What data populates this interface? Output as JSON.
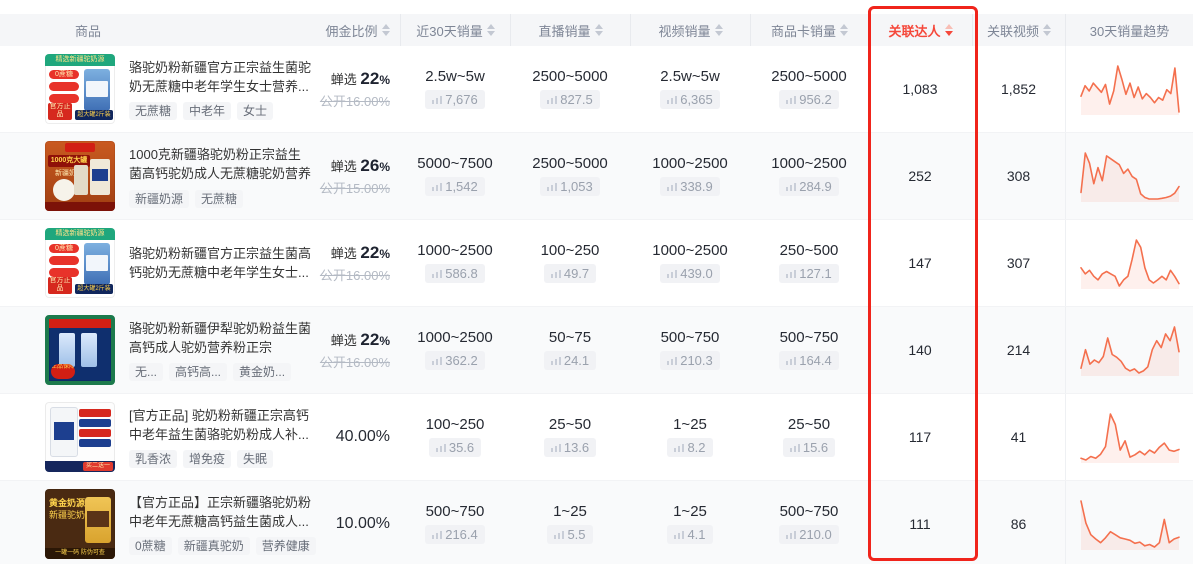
{
  "colors": {
    "accent_red": "#f5483b",
    "annotation_box_red": "#f0241b",
    "sparkline_orange": "#f4704e",
    "header_bg": "#f5f6f8",
    "alt_row_bg": "#f9fafb"
  },
  "header": {
    "columns": [
      {
        "label": "商品",
        "sortable": false
      },
      {
        "label": "佣金比例",
        "sortable": true
      },
      {
        "label": "近30天销量",
        "sortable": true
      },
      {
        "label": "直播销量",
        "sortable": true
      },
      {
        "label": "视频销量",
        "sortable": true
      },
      {
        "label": "商品卡销量",
        "sortable": true,
        "highlighted": true
      },
      {
        "label": "关联达人",
        "sortable": true,
        "highlighted": true
      },
      {
        "label": "关联视频",
        "sortable": true
      },
      {
        "label": "30天销量趋势",
        "sortable": false
      }
    ]
  },
  "rows": [
    {
      "title": "骆驼奶粉新疆官方正宗益生菌驼奶无蔗糖中老年学生女士营养...",
      "tags": [
        "无蔗糖",
        "中老年",
        "女士"
      ],
      "commission": {
        "chan_label": "蝉选",
        "chan_value": "22",
        "chan_unit": "%",
        "public_text": "公开16.00%"
      },
      "sales30": {
        "range": "2.5w~5w",
        "sub": "7,676"
      },
      "live": {
        "range": "2500~5000",
        "sub": "827.5"
      },
      "video": {
        "range": "2.5w~5w",
        "sub": "6,365"
      },
      "card": {
        "range": "2500~5000",
        "sub": "956.2"
      },
      "darren": "1,083",
      "videos": "1,852",
      "image": {
        "banner": "精选新疆驼奶源",
        "badge": "0蔗糖",
        "stamp": "官方正品",
        "footer": "超大罐2斤装"
      },
      "trend": [
        42,
        58,
        50,
        62,
        55,
        48,
        60,
        30,
        50,
        88,
        68,
        45,
        62,
        40,
        56,
        38,
        46,
        40,
        32,
        40,
        36,
        52,
        46,
        85,
        18
      ]
    },
    {
      "title": "1000克新疆骆驼奶粉正宗益生菌高钙驼奶成人无蔗糖驼奶营养粉",
      "tags": [
        "新疆奶源",
        "无蔗糖"
      ],
      "commission": {
        "chan_label": "蝉选",
        "chan_value": "26",
        "chan_unit": "%",
        "public_text": "公开15.00%"
      },
      "sales30": {
        "range": "5000~7500",
        "sub": "1,542"
      },
      "live": {
        "range": "2500~5000",
        "sub": "1,053"
      },
      "video": {
        "range": "1000~2500",
        "sub": "338.9"
      },
      "card": {
        "range": "1000~2500",
        "sub": "284.9"
      },
      "darren": "252",
      "videos": "308",
      "image": {
        "badge": "1000克大罐",
        "sub": "新疆奶源"
      },
      "trend": [
        18,
        72,
        58,
        30,
        52,
        34,
        68,
        64,
        60,
        56,
        44,
        50,
        40,
        36,
        16,
        11,
        9,
        9,
        9,
        10,
        11,
        13,
        17,
        26
      ]
    },
    {
      "title": "骆驼奶粉新疆官方正宗益生菌高钙驼奶无蔗糖中老年学生女士...",
      "tags": [],
      "commission": {
        "chan_label": "蝉选",
        "chan_value": "22",
        "chan_unit": "%",
        "public_text": "公开16.00%"
      },
      "sales30": {
        "range": "1000~2500",
        "sub": "586.8"
      },
      "live": {
        "range": "100~250",
        "sub": "49.7"
      },
      "video": {
        "range": "1000~2500",
        "sub": "439.0"
      },
      "card": {
        "range": "250~500",
        "sub": "127.1"
      },
      "darren": "147",
      "videos": "307",
      "image": {
        "banner": "精选新疆驼奶源",
        "badge": "0蔗糖",
        "stamp": "官方正品",
        "footer": "超大罐2斤装"
      },
      "trend": [
        44,
        34,
        40,
        30,
        24,
        34,
        38,
        34,
        30,
        14,
        24,
        30,
        58,
        90,
        78,
        44,
        24,
        19,
        24,
        30,
        24,
        40,
        30,
        18
      ]
    },
    {
      "title": "骆驼奶粉新疆伊犁驼奶粉益生菌高钙成人驼奶营养粉正宗",
      "tags": [
        "无...",
        "高钙高...",
        "黄金奶..."
      ],
      "commission": {
        "chan_label": "蝉选",
        "chan_value": "22",
        "chan_unit": "%",
        "public_text": "公开16.00%"
      },
      "sales30": {
        "range": "1000~2500",
        "sub": "362.2"
      },
      "live": {
        "range": "50~75",
        "sub": "24.1"
      },
      "video": {
        "range": "500~750",
        "sub": "210.3"
      },
      "card": {
        "range": "500~750",
        "sub": "164.4"
      },
      "darren": "140",
      "videos": "214",
      "image": {
        "stamp": "正品保障"
      },
      "trend": [
        28,
        55,
        34,
        40,
        36,
        45,
        72,
        48,
        44,
        38,
        28,
        24,
        27,
        21,
        24,
        30,
        55,
        68,
        58,
        78,
        68,
        88,
        52
      ]
    },
    {
      "title": "[官方正品] 驼奶粉新疆正宗高钙中老年益生菌骆驼奶粉成人补...",
      "tags": [
        "乳香浓",
        "增免疫",
        "失眠"
      ],
      "commission": {
        "plain_text": "40.00%"
      },
      "sales30": {
        "range": "100~250",
        "sub": "35.6"
      },
      "live": {
        "range": "25~50",
        "sub": "13.6"
      },
      "video": {
        "range": "1~25",
        "sub": "8.2"
      },
      "card": {
        "range": "25~50",
        "sub": "15.6"
      },
      "darren": "117",
      "videos": "41",
      "image": {
        "promo": "买二送一"
      },
      "trend": [
        14,
        11,
        17,
        14,
        21,
        34,
        90,
        72,
        28,
        44,
        16,
        20,
        26,
        20,
        28,
        23,
        33,
        40,
        28,
        26,
        29
      ]
    },
    {
      "title": "【官方正品】正宗新疆骆驼奶粉中老年无蔗糖高钙益生菌成人...",
      "tags": [
        "0蔗糖",
        "新疆真驼奶",
        "营养健康"
      ],
      "commission": {
        "plain_text": "10.00%"
      },
      "sales30": {
        "range": "500~750",
        "sub": "216.4"
      },
      "live": {
        "range": "1~25",
        "sub": "5.5"
      },
      "video": {
        "range": "1~25",
        "sub": "4.1"
      },
      "card": {
        "range": "500~750",
        "sub": "210.0"
      },
      "darren": "111",
      "videos": "86",
      "image": {
        "line1": "黄金奶源",
        "line2": "新疆驼奶",
        "footer": "一罐一码 防伪可查"
      },
      "trend": [
        88,
        52,
        33,
        26,
        20,
        28,
        38,
        33,
        28,
        26,
        24,
        19,
        21,
        15,
        17,
        13,
        20,
        58,
        20,
        26,
        29
      ]
    }
  ]
}
